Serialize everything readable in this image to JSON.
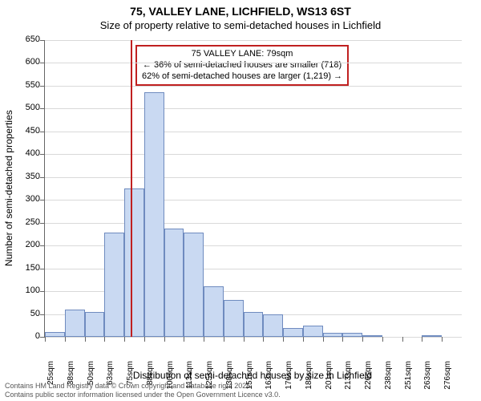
{
  "title": "75, VALLEY LANE, LICHFIELD, WS13 6ST",
  "subtitle": "Size of property relative to semi-detached houses in Lichfield",
  "ylabel": "Number of semi-detached properties",
  "xlabel": "Distribution of semi-detached houses by size in Lichfield",
  "footer_line1": "Contains HM Land Registry data © Crown copyright and database right 2025.",
  "footer_line2": "Contains public sector information licensed under the Open Government Licence v3.0.",
  "annotation": {
    "line1": "75 VALLEY LANE: 79sqm",
    "line2": "← 36% of semi-detached houses are smaller (718)",
    "line3": "62% of semi-detached houses are larger (1,219) →"
  },
  "chart": {
    "type": "histogram",
    "background_color": "#ffffff",
    "grid_color": "#d9d9d9",
    "axis_color": "#666666",
    "bar_fill": "#c9d9f2",
    "bar_stroke": "#6f8bbf",
    "marker_color": "#c02020",
    "annotation_border": "#c02020",
    "ylim": [
      0,
      650
    ],
    "ytick_step": 50,
    "x_bin_start": 25,
    "x_bin_width": 12.5,
    "x_labels": [
      "25sqm",
      "38sqm",
      "50sqm",
      "63sqm",
      "75sqm",
      "88sqm",
      "100sqm",
      "113sqm",
      "125sqm",
      "138sqm",
      "151sqm",
      "163sqm",
      "176sqm",
      "188sqm",
      "201sqm",
      "213sqm",
      "226sqm",
      "238sqm",
      "251sqm",
      "263sqm",
      "276sqm"
    ],
    "bars": [
      10,
      60,
      55,
      228,
      325,
      535,
      238,
      228,
      110,
      80,
      55,
      50,
      20,
      24,
      8,
      8,
      4,
      0,
      0,
      2,
      0
    ],
    "marker_x_value": 79,
    "label_fontsize": 12,
    "tick_fontsize": 11,
    "bar_width_ratio": 1.0
  }
}
